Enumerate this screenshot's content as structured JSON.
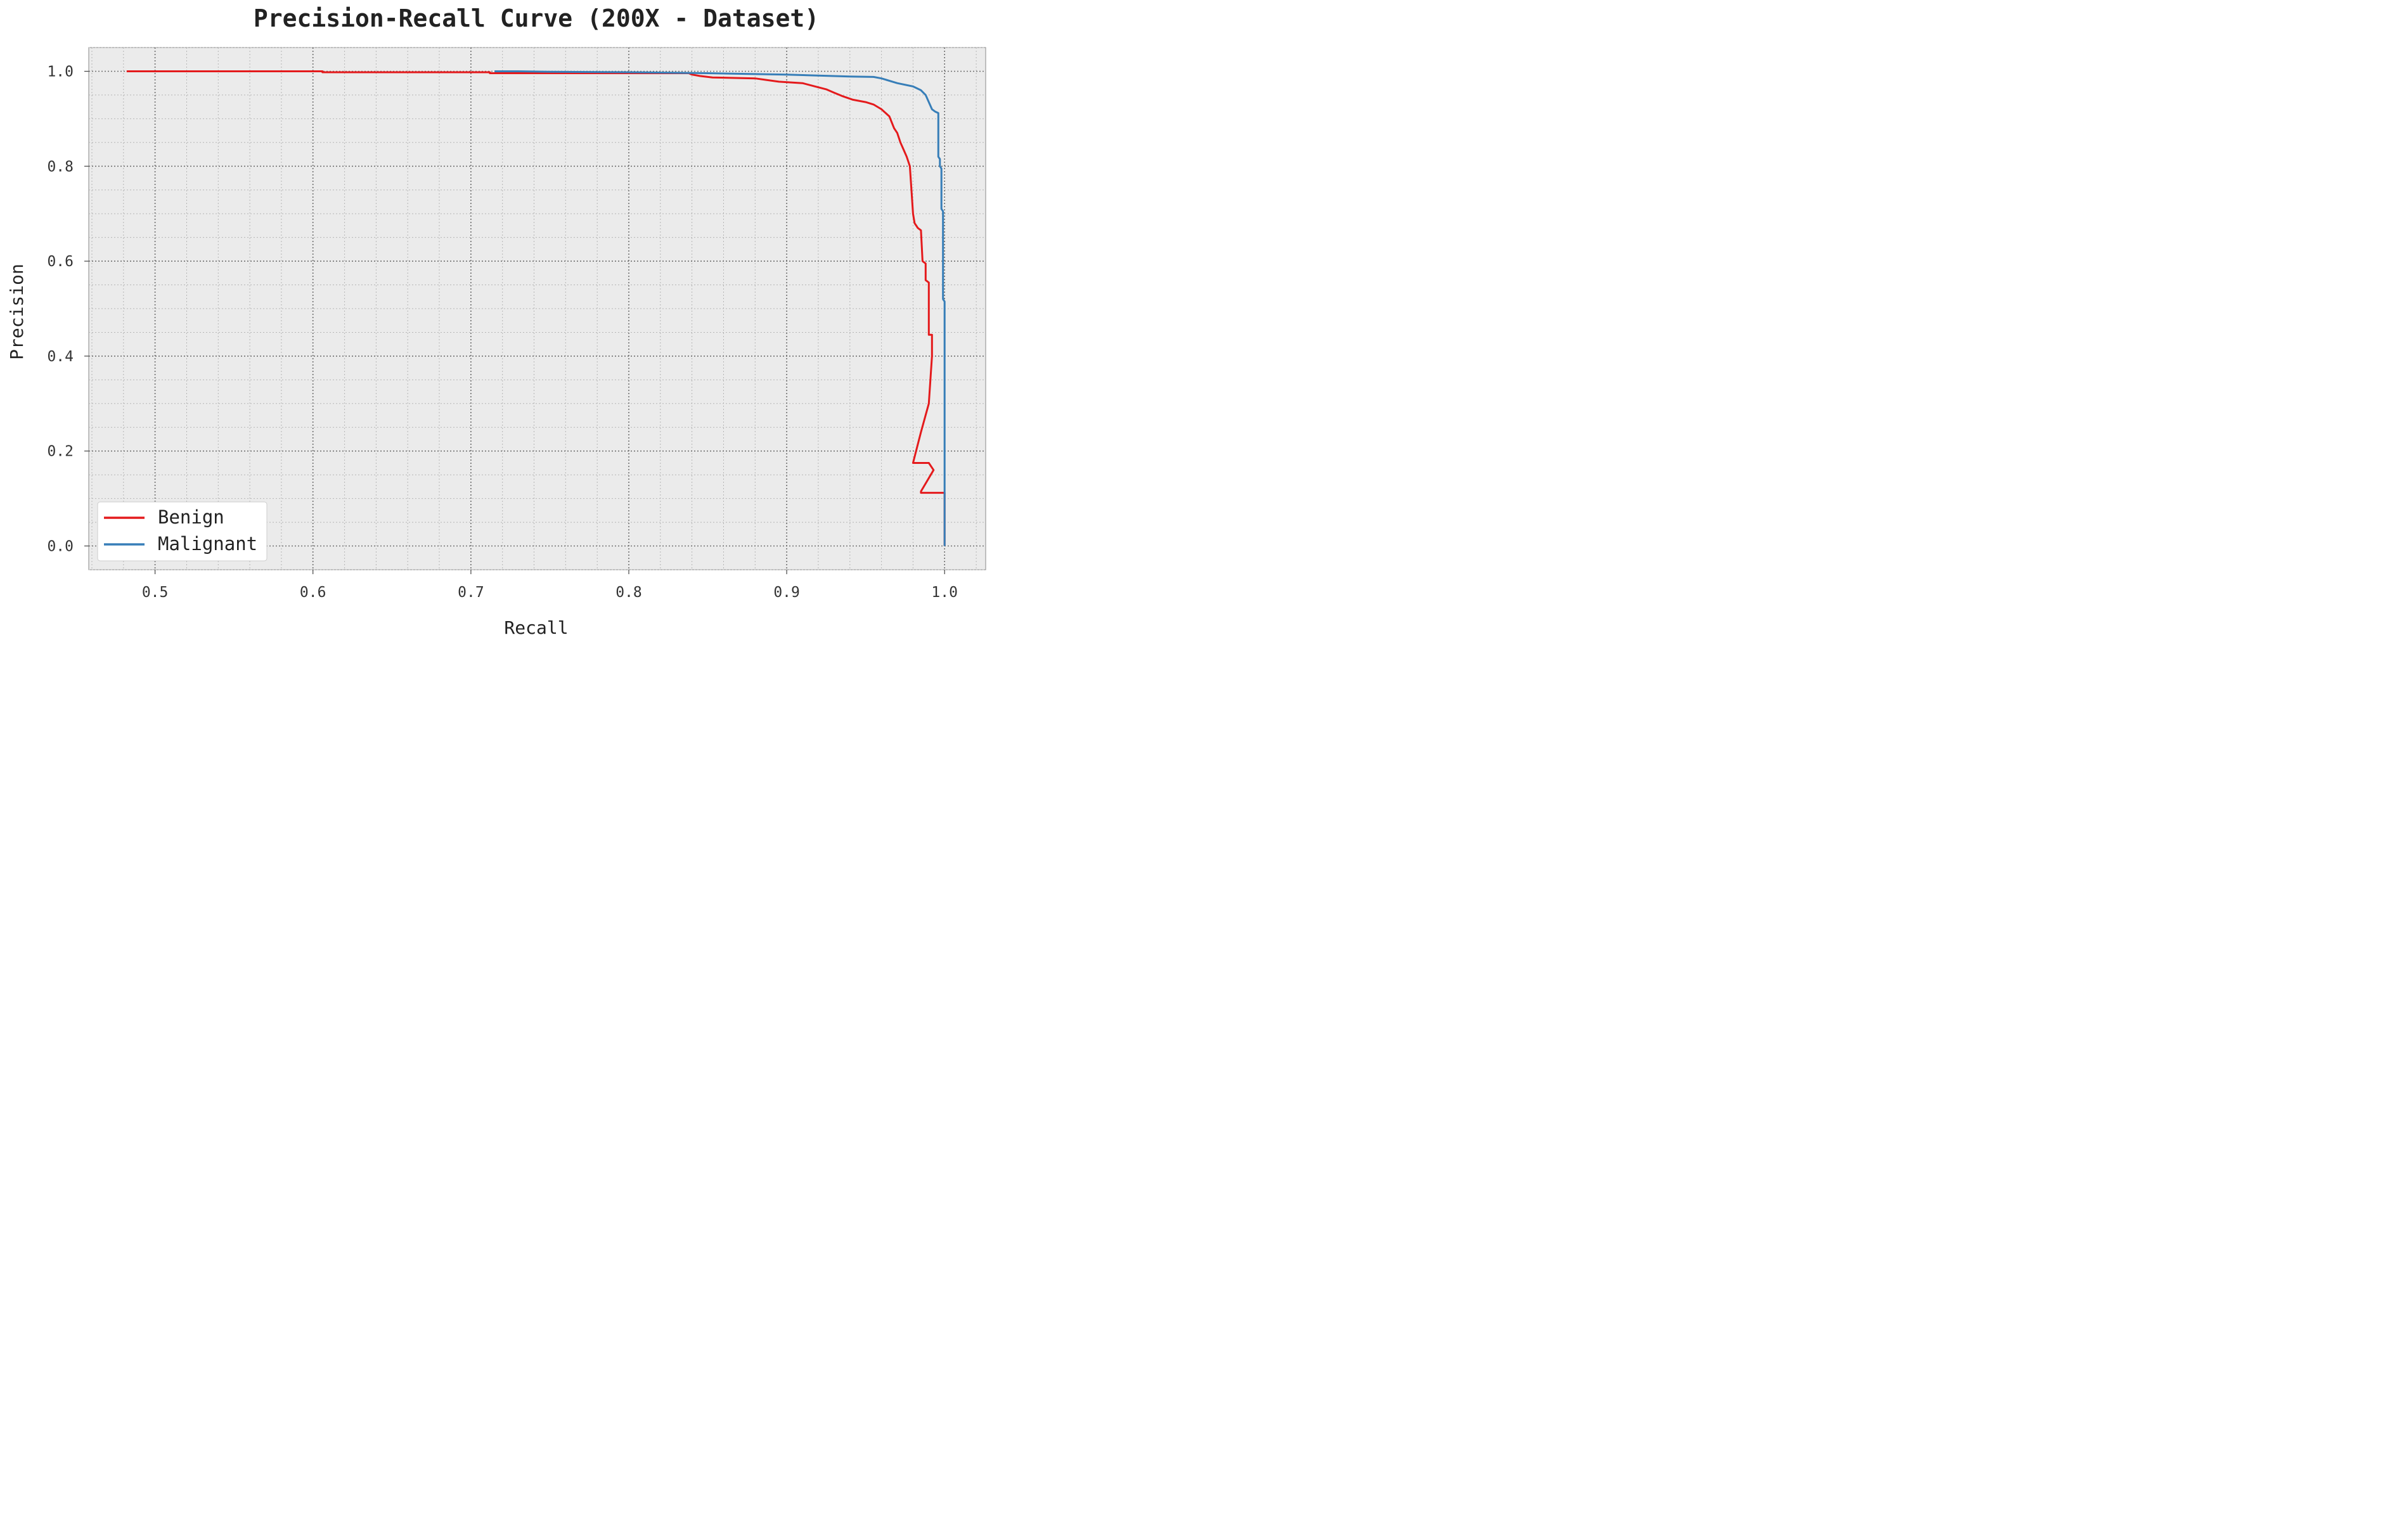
{
  "chart_data": {
    "type": "line",
    "title": "Precision-Recall Curve (200X - Dataset)",
    "xlabel": "Recall",
    "ylabel": "Precision",
    "xlim": [
      0.458,
      1.026
    ],
    "ylim": [
      -0.05,
      1.05
    ],
    "x_ticks": [
      "0.5",
      "0.6",
      "0.7",
      "0.8",
      "0.9",
      "1.0"
    ],
    "x_tick_values": [
      0.5,
      0.6,
      0.7,
      0.8,
      0.9,
      1.0
    ],
    "y_ticks": [
      "0.0",
      "0.2",
      "0.4",
      "0.6",
      "0.8",
      "1.0"
    ],
    "y_tick_values": [
      0.0,
      0.2,
      0.4,
      0.6,
      0.8,
      1.0
    ],
    "grid": true,
    "legend_position": "bottom-left",
    "background_color": "#ebebeb",
    "series": [
      {
        "name": "Benign",
        "color": "#e41a1c",
        "x": [
          0.482,
          0.606,
          0.606,
          0.712,
          0.712,
          0.838,
          0.84,
          0.845,
          0.853,
          0.88,
          0.895,
          0.91,
          0.918,
          0.925,
          0.93,
          0.935,
          0.942,
          0.95,
          0.955,
          0.96,
          0.965,
          0.968,
          0.97,
          0.972,
          0.974,
          0.976,
          0.977,
          0.978,
          0.98,
          0.981,
          0.982,
          0.983,
          0.985,
          0.986,
          0.988,
          0.988,
          0.99,
          0.99,
          0.992,
          0.992,
          0.99,
          0.985,
          0.98,
          0.98,
          0.99,
          0.993,
          0.985,
          0.985,
          1.0,
          1.0
        ],
        "y": [
          1.0,
          1.0,
          0.998,
          0.998,
          0.996,
          0.996,
          0.993,
          0.99,
          0.987,
          0.985,
          0.978,
          0.975,
          0.968,
          0.962,
          0.955,
          0.948,
          0.94,
          0.935,
          0.93,
          0.92,
          0.905,
          0.88,
          0.87,
          0.85,
          0.835,
          0.82,
          0.81,
          0.8,
          0.7,
          0.68,
          0.675,
          0.67,
          0.665,
          0.6,
          0.595,
          0.56,
          0.555,
          0.445,
          0.445,
          0.4,
          0.3,
          0.24,
          0.175,
          0.175,
          0.175,
          0.16,
          0.115,
          0.112,
          0.112,
          0.0
        ]
      },
      {
        "name": "Malignant",
        "color": "#377eb8",
        "x": [
          0.715,
          0.73,
          0.75,
          0.8,
          0.85,
          0.88,
          0.9,
          0.92,
          0.94,
          0.955,
          0.96,
          0.97,
          0.98,
          0.985,
          0.988,
          0.99,
          0.992,
          0.994,
          0.996,
          0.996,
          0.997,
          0.997,
          0.998,
          0.998,
          0.999,
          0.999,
          1.0,
          1.0
        ],
        "y": [
          1.0,
          1.0,
          0.999,
          0.998,
          0.996,
          0.994,
          0.993,
          0.991,
          0.989,
          0.988,
          0.985,
          0.975,
          0.968,
          0.96,
          0.95,
          0.935,
          0.92,
          0.915,
          0.912,
          0.82,
          0.815,
          0.8,
          0.795,
          0.71,
          0.705,
          0.52,
          0.515,
          0.0
        ]
      }
    ]
  }
}
